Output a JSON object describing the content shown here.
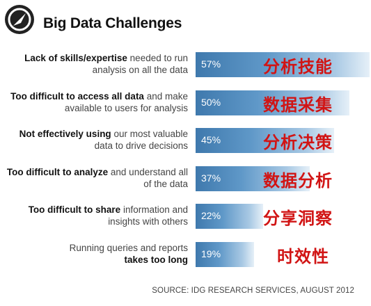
{
  "title": "Big Data Challenges",
  "source": "SOURCE: IDG RESEARCH SERVICES, AUGUST 2012",
  "chart_data": {
    "type": "bar",
    "orientation": "horizontal",
    "title": "Big Data Challenges",
    "xlim": [
      0,
      100
    ],
    "categories": [
      {
        "bold": "Lack of skills/expertise",
        "rest": " needed to run analysis on all the data",
        "zh": "分析技能"
      },
      {
        "bold": "Too difficult to access all data",
        "rest": " and make available to users for analysis",
        "zh": "数据采集"
      },
      {
        "bold": "Not effectively using",
        "rest": " our most valuable data to drive decisions",
        "zh": "分析决策"
      },
      {
        "bold": "Too difficult to analyze",
        "rest": " and understand all of the data",
        "zh": "数据分析"
      },
      {
        "bold": "Too difficult to share",
        "rest": " information and insights with others",
        "zh": "分享洞察"
      },
      {
        "pre": "Running queries and reports ",
        "bold": "takes too long",
        "rest": "",
        "zh": "时效性"
      }
    ],
    "values": [
      57,
      50,
      45,
      37,
      22,
      19
    ],
    "value_labels": [
      "57%",
      "50%",
      "45%",
      "37%",
      "22%",
      "19%"
    ]
  }
}
